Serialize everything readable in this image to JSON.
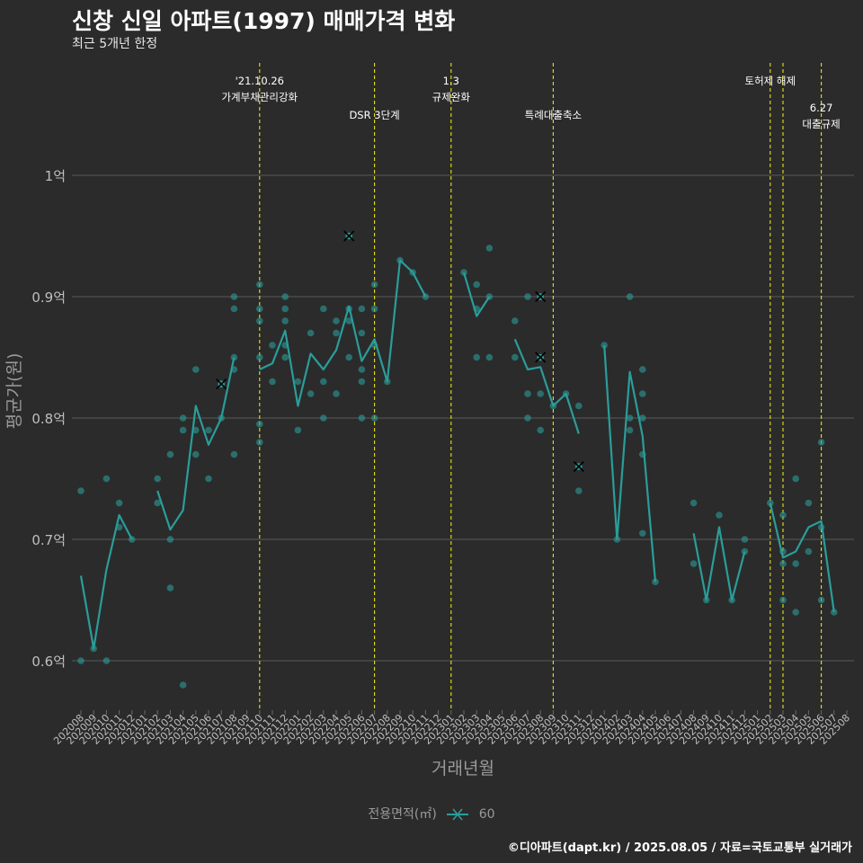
{
  "title": "신창 신일 아파트(1997) 매매가격 변화",
  "subtitle": "최근 5개년 한정",
  "caption": "©디아파트(dapt.kr) / 2025.08.05 / 자료=국토교통부 실거래가",
  "legend": {
    "title": "전용면적(㎡)",
    "items": [
      {
        "name": "60"
      }
    ]
  },
  "colors": {
    "series": "#2a9d9a",
    "event_line": "#e8e21a",
    "grid": "#5a5a5a",
    "background": "#2b2b2b",
    "cancel_mark": "#000000"
  },
  "chart_data": {
    "type": "line",
    "xlabel": "거래년월",
    "ylabel": "평균가(원)",
    "ylim": [
      0.56,
      1.09
    ],
    "yticks": [
      {
        "value": 0.6,
        "label": "0.6억"
      },
      {
        "value": 0.7,
        "label": "0.7억"
      },
      {
        "value": 0.8,
        "label": "0.8억"
      },
      {
        "value": 0.9,
        "label": "0.9억"
      },
      {
        "value": 1.0,
        "label": "1억"
      }
    ],
    "categories": [
      "202008",
      "202009",
      "202010",
      "202011",
      "202012",
      "202101",
      "202102",
      "202103",
      "202104",
      "202105",
      "202106",
      "202107",
      "202108",
      "202109",
      "202110",
      "202111",
      "202112",
      "202201",
      "202202",
      "202203",
      "202204",
      "202205",
      "202206",
      "202207",
      "202208",
      "202209",
      "202210",
      "202211",
      "202212",
      "202301",
      "202302",
      "202303",
      "202304",
      "202305",
      "202306",
      "202307",
      "202308",
      "202309",
      "202310",
      "202311",
      "202312",
      "202401",
      "202402",
      "202403",
      "202404",
      "202405",
      "202406",
      "202407",
      "202408",
      "202409",
      "202410",
      "202411",
      "202412",
      "202501",
      "202502",
      "202503",
      "202504",
      "202505",
      "202506",
      "202507",
      "202508"
    ],
    "series": [
      {
        "name": "60",
        "avg": [
          0.67,
          0.61,
          0.675,
          0.72,
          0.7,
          null,
          0.74,
          0.708,
          0.724,
          0.81,
          0.778,
          0.8,
          0.85,
          null,
          0.84,
          0.845,
          0.872,
          0.81,
          0.853,
          0.84,
          0.856,
          0.892,
          0.847,
          0.865,
          0.83,
          0.93,
          0.92,
          0.9,
          null,
          null,
          0.92,
          0.884,
          0.9,
          null,
          0.865,
          0.84,
          0.842,
          0.81,
          0.82,
          0.787,
          null,
          0.86,
          0.7,
          0.838,
          0.785,
          0.665,
          null,
          null,
          0.705,
          0.65,
          0.71,
          0.65,
          0.69,
          null,
          0.73,
          0.685,
          0.69,
          0.71,
          0.715,
          0.64,
          null
        ],
        "points": [
          [
            "202008",
            0.74
          ],
          [
            "202008",
            0.6
          ],
          [
            "202009",
            0.61
          ],
          [
            "202010",
            0.75
          ],
          [
            "202010",
            0.6
          ],
          [
            "202011",
            0.73
          ],
          [
            "202011",
            0.71
          ],
          [
            "202012",
            0.7
          ],
          [
            "202102",
            0.75
          ],
          [
            "202102",
            0.73
          ],
          [
            "202103",
            0.77
          ],
          [
            "202103",
            0.7
          ],
          [
            "202103",
            0.66
          ],
          [
            "202104",
            0.8
          ],
          [
            "202104",
            0.79
          ],
          [
            "202104",
            0.58
          ],
          [
            "202105",
            0.84
          ],
          [
            "202105",
            0.79
          ],
          [
            "202105",
            0.77
          ],
          [
            "202106",
            0.79
          ],
          [
            "202106",
            0.75
          ],
          [
            "202107",
            0.8
          ],
          [
            "202108",
            0.9
          ],
          [
            "202108",
            0.89
          ],
          [
            "202108",
            0.85
          ],
          [
            "202108",
            0.84
          ],
          [
            "202108",
            0.77
          ],
          [
            "202110",
            0.91
          ],
          [
            "202110",
            0.89
          ],
          [
            "202110",
            0.88
          ],
          [
            "202110",
            0.85
          ],
          [
            "202110",
            0.795
          ],
          [
            "202110",
            0.78
          ],
          [
            "202111",
            0.86
          ],
          [
            "202111",
            0.83
          ],
          [
            "202112",
            0.9
          ],
          [
            "202112",
            0.89
          ],
          [
            "202112",
            0.88
          ],
          [
            "202112",
            0.86
          ],
          [
            "202112",
            0.85
          ],
          [
            "202201",
            0.83
          ],
          [
            "202201",
            0.79
          ],
          [
            "202202",
            0.87
          ],
          [
            "202202",
            0.82
          ],
          [
            "202203",
            0.89
          ],
          [
            "202203",
            0.83
          ],
          [
            "202203",
            0.8
          ],
          [
            "202204",
            0.88
          ],
          [
            "202204",
            0.87
          ],
          [
            "202204",
            0.82
          ],
          [
            "202205",
            0.95
          ],
          [
            "202205",
            0.89
          ],
          [
            "202205",
            0.88
          ],
          [
            "202205",
            0.85
          ],
          [
            "202206",
            0.89
          ],
          [
            "202206",
            0.87
          ],
          [
            "202206",
            0.84
          ],
          [
            "202206",
            0.83
          ],
          [
            "202206",
            0.8
          ],
          [
            "202207",
            0.91
          ],
          [
            "202207",
            0.89
          ],
          [
            "202207",
            0.86
          ],
          [
            "202207",
            0.8
          ],
          [
            "202208",
            0.83
          ],
          [
            "202209",
            0.93
          ],
          [
            "202210",
            0.92
          ],
          [
            "202211",
            0.9
          ],
          [
            "202302",
            0.92
          ],
          [
            "202303",
            0.91
          ],
          [
            "202303",
            0.89
          ],
          [
            "202303",
            0.85
          ],
          [
            "202304",
            0.94
          ],
          [
            "202304",
            0.9
          ],
          [
            "202304",
            0.85
          ],
          [
            "202306",
            0.88
          ],
          [
            "202306",
            0.85
          ],
          [
            "202307",
            0.9
          ],
          [
            "202307",
            0.82
          ],
          [
            "202307",
            0.8
          ],
          [
            "202308",
            0.9
          ],
          [
            "202308",
            0.85
          ],
          [
            "202308",
            0.82
          ],
          [
            "202308",
            0.79
          ],
          [
            "202309",
            0.81
          ],
          [
            "202310",
            0.82
          ],
          [
            "202311",
            0.81
          ],
          [
            "202311",
            0.76
          ],
          [
            "202311",
            0.74
          ],
          [
            "202401",
            0.86
          ],
          [
            "202402",
            0.7
          ],
          [
            "202403",
            0.9
          ],
          [
            "202403",
            0.8
          ],
          [
            "202403",
            0.79
          ],
          [
            "202404",
            0.84
          ],
          [
            "202404",
            0.82
          ],
          [
            "202404",
            0.8
          ],
          [
            "202404",
            0.77
          ],
          [
            "202404",
            0.705
          ],
          [
            "202405",
            0.665
          ],
          [
            "202408",
            0.73
          ],
          [
            "202408",
            0.68
          ],
          [
            "202409",
            0.65
          ],
          [
            "202410",
            0.72
          ],
          [
            "202411",
            0.65
          ],
          [
            "202412",
            0.7
          ],
          [
            "202412",
            0.69
          ],
          [
            "202502",
            0.73
          ],
          [
            "202503",
            0.72
          ],
          [
            "202503",
            0.69
          ],
          [
            "202503",
            0.68
          ],
          [
            "202503",
            0.65
          ],
          [
            "202504",
            0.75
          ],
          [
            "202504",
            0.68
          ],
          [
            "202504",
            0.64
          ],
          [
            "202505",
            0.73
          ],
          [
            "202505",
            0.69
          ],
          [
            "202506",
            0.78
          ],
          [
            "202506",
            0.71
          ],
          [
            "202506",
            0.65
          ],
          [
            "202507",
            0.64
          ]
        ],
        "cancelled": [
          [
            "202107",
            0.828
          ],
          [
            "202205",
            0.95
          ],
          [
            "202308",
            0.9
          ],
          [
            "202308",
            0.85
          ],
          [
            "202311",
            0.76
          ]
        ]
      }
    ],
    "events": [
      {
        "x": "202110",
        "lines": [
          "'21.10.26",
          "가계부채관리강화"
        ],
        "row": 1
      },
      {
        "x": "202207",
        "lines": [
          "DSR 3단계"
        ],
        "row": 2
      },
      {
        "x": "202301",
        "lines": [
          "1.3",
          "규제완화"
        ],
        "row": 1
      },
      {
        "x": "202309",
        "lines": [
          "특례대출축소"
        ],
        "row": 2
      },
      {
        "x": "202502",
        "lines": [
          "토허제 해제"
        ],
        "row": 1
      },
      {
        "x": "202503",
        "lines": [],
        "row": 1
      },
      {
        "x": "202506",
        "lines": [
          "6.27",
          "대출규제"
        ],
        "row": 3
      }
    ]
  }
}
